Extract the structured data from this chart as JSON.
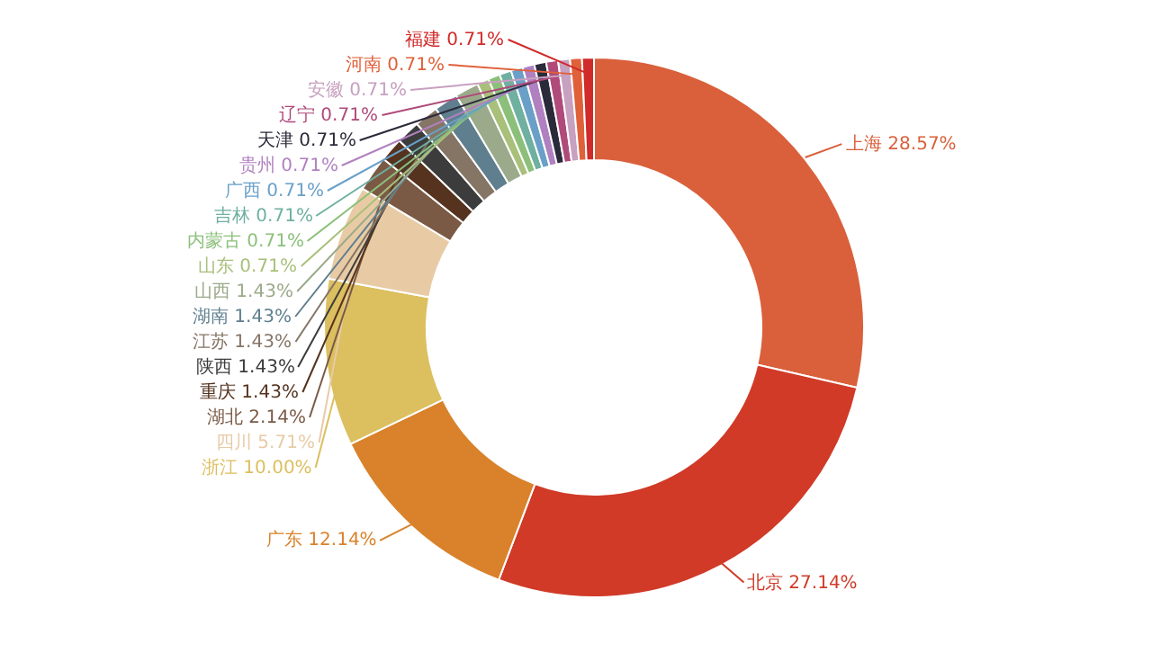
{
  "chart_data": {
    "type": "donut",
    "categories": [
      "上海",
      "北京",
      "广东",
      "浙江",
      "四川",
      "湖北",
      "重庆",
      "陕西",
      "江苏",
      "湖南",
      "山西",
      "山东",
      "内蒙古",
      "吉林",
      "广西",
      "贵州",
      "天津",
      "辽宁",
      "安徽",
      "河南",
      "福建"
    ],
    "values": [
      28.57,
      27.14,
      12.14,
      10.0,
      5.71,
      2.14,
      1.43,
      1.43,
      1.43,
      1.43,
      1.43,
      0.71,
      0.71,
      0.71,
      0.71,
      0.71,
      0.71,
      0.71,
      0.71,
      0.71,
      0.71
    ],
    "value_labels": [
      "28.57%",
      "27.14%",
      "12.14%",
      "10.00%",
      "5.71%",
      "2.14%",
      "1.43%",
      "1.43%",
      "1.43%",
      "1.43%",
      "1.43%",
      "0.71%",
      "0.71%",
      "0.71%",
      "0.71%",
      "0.71%",
      "0.71%",
      "0.71%",
      "0.71%",
      "0.71%",
      "0.71%"
    ],
    "colors": [
      "#d9603b",
      "#d03a27",
      "#d9822b",
      "#dcbf5f",
      "#e8cba5",
      "#7a5a45",
      "#55331f",
      "#3c3c3c",
      "#857565",
      "#5f7f8f",
      "#9aaa8a",
      "#a8c07a",
      "#8cc07a",
      "#6fb0a0",
      "#6aa0c8",
      "#b080c0",
      "#2a2a3a",
      "#b04a7a",
      "#c8a0c0",
      "#e0603a",
      "#d02a2a"
    ],
    "legend": false
  }
}
